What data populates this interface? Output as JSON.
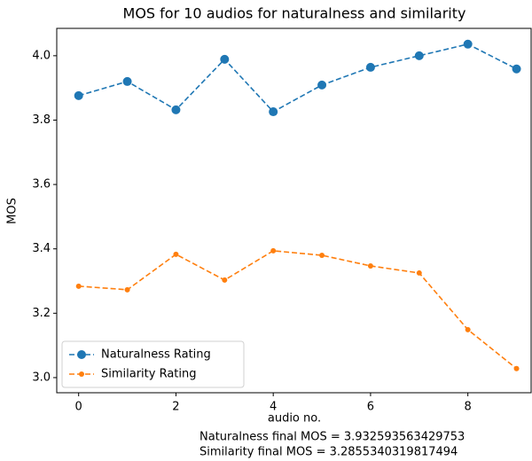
{
  "chart_data": {
    "type": "line",
    "title": "MOS for 10 audios for naturalness and similarity",
    "xlabel": "audio no.",
    "ylabel": "MOS",
    "annotations": [
      "Naturalness final MOS = 3.932593563429753",
      "Similarity final MOS = 3.2855340319817494"
    ],
    "x": [
      0,
      1,
      2,
      3,
      4,
      5,
      6,
      7,
      8,
      9
    ],
    "series": [
      {
        "name": "Naturalness Rating",
        "color": "#1f77b4",
        "marker": "large",
        "values": [
          3.876,
          3.92,
          3.832,
          3.989,
          3.826,
          3.909,
          3.964,
          4.0,
          4.036,
          3.959
        ]
      },
      {
        "name": "Similarity Rating",
        "color": "#ff7f0e",
        "marker": "small",
        "values": [
          3.284,
          3.273,
          3.383,
          3.303,
          3.394,
          3.38,
          3.347,
          3.325,
          3.149,
          3.028
        ]
      }
    ],
    "xlim": [
      -0.45,
      9.3
    ],
    "ylim": [
      2.953,
      4.085
    ],
    "xticks": [
      0,
      2,
      4,
      6,
      8
    ],
    "yticks": [
      {
        "value": 3,
        "label": "3.0"
      },
      3.2,
      3.4,
      3.6,
      3.8,
      {
        "value": 4,
        "label": "4.0"
      }
    ],
    "legend": "lower left"
  }
}
